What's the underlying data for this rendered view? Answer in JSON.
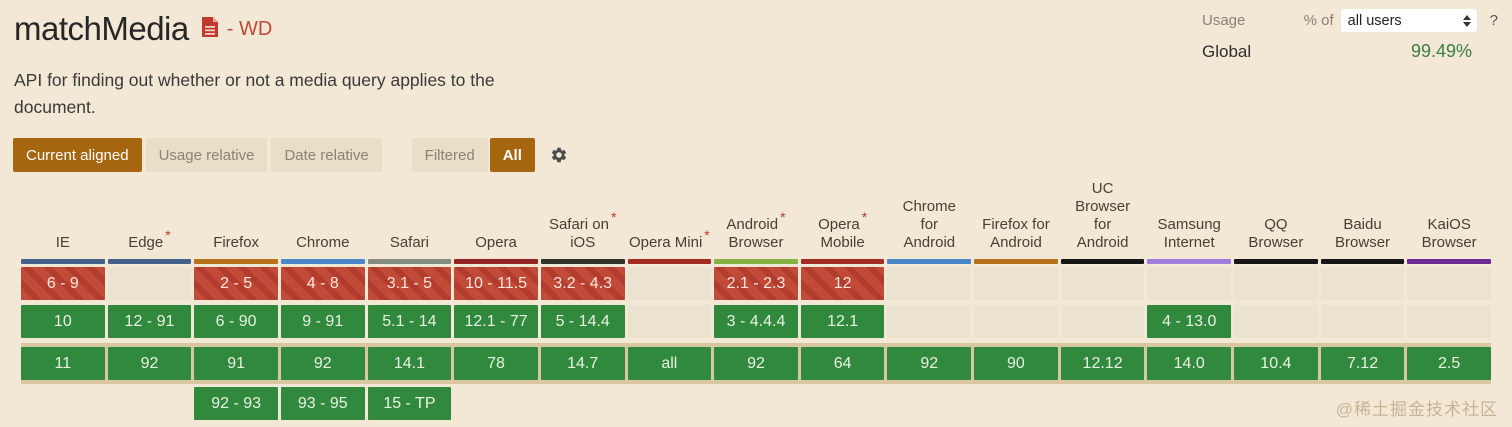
{
  "colors": {
    "page_background": "#f2e8d5",
    "accent_brown": "#a6660f",
    "supported_green": "#30893d",
    "unsupported_red": "#c24a38",
    "unknown_cell": "#ebe2cf",
    "current_row_highlight": "#d9c7a0",
    "spec_status_red": "#c2473a",
    "global_usage_green": "#3e7d44"
  },
  "header": {
    "title": "matchMedia",
    "doc_icon": "spec-document-icon",
    "spec_status": "- WD",
    "description": "API for finding out whether or not a media query applies to the document.",
    "usage_label": "Usage",
    "percent_of_label": "% of",
    "usage_select_value": "all users",
    "help_label": "?",
    "global_label": "Global",
    "global_usage": "99.49%"
  },
  "toolbar": {
    "view_buttons": [
      {
        "label": "Current aligned",
        "active": true
      },
      {
        "label": "Usage relative",
        "active": false
      },
      {
        "label": "Date relative",
        "active": false
      }
    ],
    "filtered_label": "Filtered",
    "filter_value": "All",
    "gear_icon": "settings-gear-icon"
  },
  "support_table": {
    "row_meaning": [
      "older versions",
      "past versions",
      "current version",
      "future versions"
    ],
    "cell_states": {
      "y": "supported",
      "n": "not supported",
      "u": "unknown/blank"
    },
    "columns": [
      {
        "name": "IE",
        "lines": [
          "IE"
        ],
        "asterisk_line": -1,
        "brand_color": "#44618b",
        "cells": [
          {
            "t": "6 - 9",
            "s": "n"
          },
          {
            "t": "10",
            "s": "y"
          },
          {
            "t": "11",
            "s": "y"
          },
          null
        ]
      },
      {
        "name": "Edge",
        "lines": [
          "Edge"
        ],
        "asterisk_line": 0,
        "brand_color": "#44618b",
        "cells": [
          {
            "t": "",
            "s": "u"
          },
          {
            "t": "12 - 91",
            "s": "y"
          },
          {
            "t": "92",
            "s": "y"
          },
          null
        ]
      },
      {
        "name": "Firefox",
        "lines": [
          "Firefox"
        ],
        "asterisk_line": -1,
        "brand_color": "#b8701d",
        "cells": [
          {
            "t": "2 - 5",
            "s": "n"
          },
          {
            "t": "6 - 90",
            "s": "y"
          },
          {
            "t": "91",
            "s": "y"
          },
          {
            "t": "92 - 93",
            "s": "y"
          }
        ]
      },
      {
        "name": "Chrome",
        "lines": [
          "Chrome"
        ],
        "asterisk_line": -1,
        "brand_color": "#4a86c8",
        "cells": [
          {
            "t": "4 - 8",
            "s": "n"
          },
          {
            "t": "9 - 91",
            "s": "y"
          },
          {
            "t": "92",
            "s": "y"
          },
          {
            "t": "93 - 95",
            "s": "y"
          }
        ]
      },
      {
        "name": "Safari",
        "lines": [
          "Safari"
        ],
        "asterisk_line": -1,
        "brand_color": "#848b7f",
        "cells": [
          {
            "t": "3.1 - 5",
            "s": "n"
          },
          {
            "t": "5.1 - 14",
            "s": "y"
          },
          {
            "t": "14.1",
            "s": "y"
          },
          {
            "t": "15 - TP",
            "s": "y"
          }
        ]
      },
      {
        "name": "Opera",
        "lines": [
          "Opera"
        ],
        "asterisk_line": -1,
        "brand_color": "#932423",
        "cells": [
          {
            "t": "10 - 11.5",
            "s": "n"
          },
          {
            "t": "12.1 - 77",
            "s": "y"
          },
          {
            "t": "78",
            "s": "y"
          },
          null
        ]
      },
      {
        "name": "Safari on iOS",
        "lines": [
          "Safari on",
          "iOS"
        ],
        "asterisk_line": 0,
        "brand_color": "#32342c",
        "cells": [
          {
            "t": "3.2 - 4.3",
            "s": "n"
          },
          {
            "t": "5 - 14.4",
            "s": "y"
          },
          {
            "t": "14.7",
            "s": "y"
          },
          null
        ]
      },
      {
        "name": "Opera Mini",
        "lines": [
          "Opera Mini"
        ],
        "asterisk_line": 0,
        "brand_color": "#a22b24",
        "cells": [
          {
            "t": "",
            "s": "u"
          },
          {
            "t": "",
            "s": "u"
          },
          {
            "t": "all",
            "s": "y"
          },
          null
        ]
      },
      {
        "name": "Android Browser",
        "lines": [
          "Android",
          "Browser"
        ],
        "asterisk_line": 0,
        "brand_color": "#84b141",
        "cells": [
          {
            "t": "2.1 - 2.3",
            "s": "n"
          },
          {
            "t": "3 - 4.4.4",
            "s": "y"
          },
          {
            "t": "92",
            "s": "y"
          },
          null
        ]
      },
      {
        "name": "Opera Mobile",
        "lines": [
          "Opera",
          "Mobile"
        ],
        "asterisk_line": 0,
        "brand_color": "#a22b24",
        "cells": [
          {
            "t": "12",
            "s": "n"
          },
          {
            "t": "12.1",
            "s": "y"
          },
          {
            "t": "64",
            "s": "y"
          },
          null
        ]
      },
      {
        "name": "Chrome for Android",
        "lines": [
          "Chrome",
          "for",
          "Android"
        ],
        "asterisk_line": -1,
        "brand_color": "#4a86c8",
        "cells": [
          {
            "t": "",
            "s": "u"
          },
          {
            "t": "",
            "s": "u"
          },
          {
            "t": "92",
            "s": "y"
          },
          null
        ]
      },
      {
        "name": "Firefox for Android",
        "lines": [
          "Firefox for",
          "Android"
        ],
        "asterisk_line": -1,
        "brand_color": "#b8701d",
        "cells": [
          {
            "t": "",
            "s": "u"
          },
          {
            "t": "",
            "s": "u"
          },
          {
            "t": "90",
            "s": "y"
          },
          null
        ]
      },
      {
        "name": "UC Browser for Android",
        "lines": [
          "UC",
          "Browser",
          "for",
          "Android"
        ],
        "asterisk_line": -1,
        "brand_color": "#151515",
        "cells": [
          {
            "t": "",
            "s": "u"
          },
          {
            "t": "",
            "s": "u"
          },
          {
            "t": "12.12",
            "s": "y"
          },
          null
        ]
      },
      {
        "name": "Samsung Internet",
        "lines": [
          "Samsung",
          "Internet"
        ],
        "asterisk_line": -1,
        "brand_color": "#9f7ddb",
        "cells": [
          {
            "t": "",
            "s": "u"
          },
          {
            "t": "4 - 13.0",
            "s": "y"
          },
          {
            "t": "14.0",
            "s": "y"
          },
          null
        ]
      },
      {
        "name": "QQ Browser",
        "lines": [
          "QQ",
          "Browser"
        ],
        "asterisk_line": -1,
        "brand_color": "#151515",
        "cells": [
          {
            "t": "",
            "s": "u"
          },
          {
            "t": "",
            "s": "u"
          },
          {
            "t": "10.4",
            "s": "y"
          },
          null
        ]
      },
      {
        "name": "Baidu Browser",
        "lines": [
          "Baidu",
          "Browser"
        ],
        "asterisk_line": -1,
        "brand_color": "#151515",
        "cells": [
          {
            "t": "",
            "s": "u"
          },
          {
            "t": "",
            "s": "u"
          },
          {
            "t": "7.12",
            "s": "y"
          },
          null
        ]
      },
      {
        "name": "KaiOS Browser",
        "lines": [
          "KaiOS",
          "Browser"
        ],
        "asterisk_line": -1,
        "brand_color": "#6b2d94",
        "cells": [
          {
            "t": "",
            "s": "u"
          },
          {
            "t": "",
            "s": "u"
          },
          {
            "t": "2.5",
            "s": "y"
          },
          null
        ]
      }
    ]
  },
  "watermark": "@稀土掘金技术社区"
}
